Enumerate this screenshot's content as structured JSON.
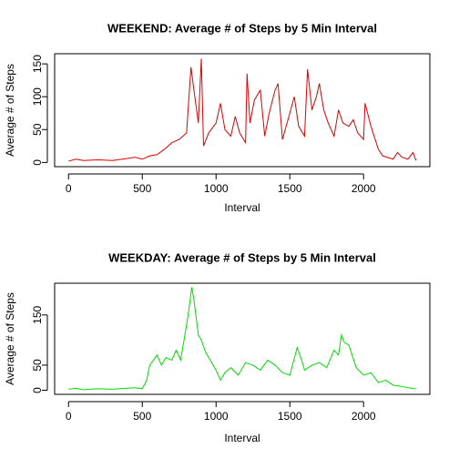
{
  "chart_data": [
    {
      "type": "line",
      "title": "WEEKEND: Average # of Steps by 5 Min Interval",
      "x_label": "Interval",
      "y_label": "Average # of Steps",
      "color": "#dd0000",
      "x": [
        0,
        50,
        100,
        200,
        300,
        400,
        450,
        500,
        550,
        600,
        650,
        700,
        750,
        800,
        830,
        850,
        880,
        900,
        915,
        950,
        1000,
        1030,
        1060,
        1100,
        1130,
        1160,
        1200,
        1210,
        1230,
        1260,
        1300,
        1330,
        1360,
        1400,
        1420,
        1450,
        1500,
        1530,
        1560,
        1600,
        1620,
        1650,
        1680,
        1700,
        1730,
        1760,
        1800,
        1830,
        1860,
        1900,
        1930,
        1960,
        2000,
        2010,
        2050,
        2100,
        2130,
        2200,
        2230,
        2260,
        2300,
        2335,
        2355
      ],
      "values": [
        2,
        5,
        3,
        4,
        3,
        6,
        8,
        5,
        10,
        12,
        20,
        30,
        35,
        45,
        145,
        110,
        60,
        158,
        25,
        45,
        60,
        90,
        50,
        40,
        70,
        45,
        30,
        135,
        60,
        95,
        110,
        40,
        75,
        110,
        120,
        35,
        75,
        100,
        55,
        40,
        142,
        80,
        100,
        120,
        80,
        60,
        40,
        80,
        60,
        55,
        65,
        45,
        35,
        90,
        55,
        20,
        10,
        5,
        15,
        8,
        5,
        15,
        3
      ],
      "xlim": [
        -94.2,
        2449.2
      ],
      "ylim": [
        -6.4,
        165.4
      ],
      "xticks": [
        0,
        500,
        1000,
        1500,
        2000
      ],
      "yticks": [
        0,
        50,
        100,
        150
      ]
    },
    {
      "type": "line",
      "title": "WEEKDAY: Average # of Steps by 5 Min Interval",
      "x_label": "Interval",
      "y_label": "Average # of Steps",
      "color": "#00dd00",
      "x": [
        0,
        50,
        100,
        200,
        300,
        400,
        450,
        500,
        530,
        550,
        600,
        630,
        660,
        700,
        730,
        760,
        800,
        820,
        835,
        850,
        880,
        900,
        930,
        960,
        1000,
        1030,
        1060,
        1100,
        1150,
        1200,
        1250,
        1300,
        1350,
        1400,
        1450,
        1500,
        1550,
        1580,
        1600,
        1650,
        1700,
        1750,
        1800,
        1830,
        1850,
        1870,
        1900,
        1950,
        2000,
        2050,
        2100,
        2150,
        2200,
        2250,
        2300,
        2355
      ],
      "values": [
        2,
        4,
        1,
        3,
        2,
        4,
        5,
        3,
        20,
        50,
        70,
        50,
        65,
        60,
        80,
        60,
        130,
        170,
        205,
        180,
        110,
        100,
        75,
        60,
        40,
        20,
        35,
        45,
        30,
        55,
        50,
        40,
        60,
        50,
        35,
        30,
        85,
        60,
        40,
        50,
        55,
        45,
        80,
        70,
        110,
        95,
        90,
        45,
        30,
        35,
        15,
        20,
        10,
        8,
        5,
        3
      ],
      "xlim": [
        -94.2,
        2449.2
      ],
      "ylim": [
        -8.2,
        213.2
      ],
      "xticks": [
        0,
        500,
        1000,
        1500,
        2000
      ],
      "yticks": [
        0,
        50,
        150
      ]
    }
  ]
}
